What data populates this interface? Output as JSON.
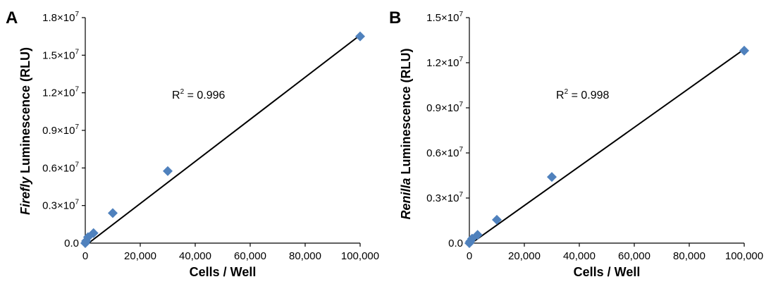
{
  "chart_data": [
    {
      "type": "scatter",
      "panel": "A",
      "xlabel": "Cells / Well",
      "ylabel_italic": "Firefly",
      "ylabel_rest": " Luminescence (RLU)",
      "xlim": [
        0,
        100000
      ],
      "ylim": [
        0,
        18000000
      ],
      "x_ticks": [
        0,
        20000,
        40000,
        60000,
        80000,
        100000
      ],
      "x_tick_labels": [
        "0",
        "20,000",
        "40,000",
        "60,000",
        "80,000",
        "100,000"
      ],
      "y_ticks": [
        0,
        3000000,
        6000000,
        9000000,
        12000000,
        15000000,
        18000000
      ],
      "y_tick_labels": [
        {
          "mant": "0.0",
          "exp": ""
        },
        {
          "mant": "0.3×10",
          "exp": "7"
        },
        {
          "mant": "0.6×10",
          "exp": "7"
        },
        {
          "mant": "0.9×10",
          "exp": "7"
        },
        {
          "mant": "1.2×10",
          "exp": "7"
        },
        {
          "mant": "1.5×10",
          "exp": "7"
        },
        {
          "mant": "1.8×10",
          "exp": "7"
        }
      ],
      "points": [
        {
          "x": 0,
          "y": 0
        },
        {
          "x": 300,
          "y": 170000
        },
        {
          "x": 1000,
          "y": 480000
        },
        {
          "x": 3000,
          "y": 800000
        },
        {
          "x": 10000,
          "y": 2400000
        },
        {
          "x": 30000,
          "y": 5750000
        },
        {
          "x": 100000,
          "y": 16500000
        }
      ],
      "trendline": {
        "x": [
          0,
          100000
        ],
        "y": [
          -200000,
          16600000
        ]
      },
      "r2_prefix": "R",
      "r2_exp": "2",
      "r2_value": " = 0.996",
      "marker_color": "#4f81bd",
      "line_color": "#000000"
    },
    {
      "type": "scatter",
      "panel": "B",
      "xlabel": "Cells / Well",
      "ylabel_italic": "Renilla",
      "ylabel_rest": " Luminescence (RLU)",
      "xlim": [
        0,
        100000
      ],
      "ylim": [
        0,
        15000000
      ],
      "x_ticks": [
        0,
        20000,
        40000,
        60000,
        80000,
        100000
      ],
      "x_tick_labels": [
        "0",
        "20,000",
        "40,000",
        "60,000",
        "80,000",
        "100,000"
      ],
      "y_ticks": [
        0,
        3000000,
        6000000,
        9000000,
        12000000,
        15000000
      ],
      "y_tick_labels": [
        {
          "mant": "0.0",
          "exp": ""
        },
        {
          "mant": "0.3×10",
          "exp": "7"
        },
        {
          "mant": "0.6×10",
          "exp": "7"
        },
        {
          "mant": "0.9×10",
          "exp": "7"
        },
        {
          "mant": "1.2×10",
          "exp": "7"
        },
        {
          "mant": "1.5×10",
          "exp": "7"
        }
      ],
      "points": [
        {
          "x": 0,
          "y": 0
        },
        {
          "x": 300,
          "y": 120000
        },
        {
          "x": 1000,
          "y": 300000
        },
        {
          "x": 3000,
          "y": 550000
        },
        {
          "x": 10000,
          "y": 1550000
        },
        {
          "x": 30000,
          "y": 4400000
        },
        {
          "x": 100000,
          "y": 12800000
        }
      ],
      "trendline": {
        "x": [
          0,
          100000
        ],
        "y": [
          -100000,
          12900000
        ]
      },
      "r2_prefix": "R",
      "r2_exp": "2",
      "r2_value": " = 0.998",
      "marker_color": "#4f81bd",
      "line_color": "#000000"
    }
  ]
}
